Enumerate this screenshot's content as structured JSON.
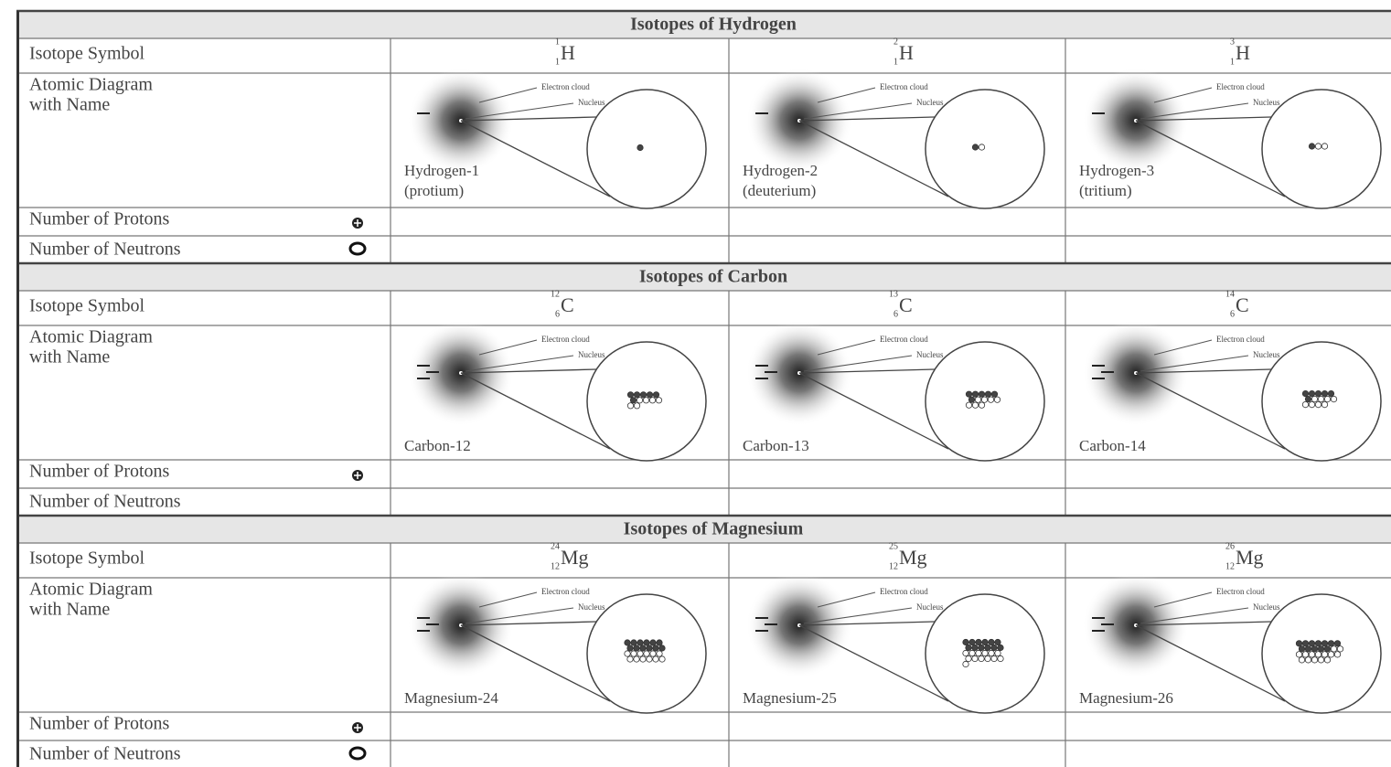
{
  "diagram_labels": {
    "electron_cloud": "Electron cloud",
    "nucleus": "Nucleus"
  },
  "sections": [
    {
      "title": "Isotopes of Hydrogen",
      "row_labels": {
        "symbol": "Isotope Symbol",
        "diagram": [
          "Atomic Diagram",
          "with Name"
        ],
        "protons": "Number of Protons",
        "neutrons": "Number of Neutrons"
      },
      "isotopes": [
        {
          "mass_number": 1,
          "atomic_number": 1,
          "symbol": "H",
          "name": [
            "Hydrogen-1",
            "(protium)"
          ]
        },
        {
          "mass_number": 2,
          "atomic_number": 1,
          "symbol": "H",
          "name": [
            "Hydrogen-2",
            "(deuterium)"
          ]
        },
        {
          "mass_number": 3,
          "atomic_number": 1,
          "symbol": "H",
          "name": [
            "Hydrogen-3",
            "(tritium)"
          ]
        }
      ]
    },
    {
      "title": "Isotopes of Carbon",
      "row_labels": {
        "symbol": "Isotope Symbol",
        "diagram": [
          "Atomic Diagram",
          "with Name"
        ],
        "protons": "Number of Protons",
        "neutrons": "Number of Neutrons"
      },
      "isotopes": [
        {
          "mass_number": 12,
          "atomic_number": 6,
          "symbol": "C",
          "name": [
            "Carbon-12"
          ]
        },
        {
          "mass_number": 13,
          "atomic_number": 6,
          "symbol": "C",
          "name": [
            "Carbon-13"
          ]
        },
        {
          "mass_number": 14,
          "atomic_number": 6,
          "symbol": "C",
          "name": [
            "Carbon-14"
          ]
        }
      ]
    },
    {
      "title": "Isotopes of Magnesium",
      "row_labels": {
        "symbol": "Isotope Symbol",
        "diagram": [
          "Atomic Diagram",
          "with Name"
        ],
        "protons": "Number of Protons",
        "neutrons": "Number of Neutrons"
      },
      "isotopes": [
        {
          "mass_number": 24,
          "atomic_number": 12,
          "symbol": "Mg",
          "name": [
            "Magnesium-24"
          ]
        },
        {
          "mass_number": 25,
          "atomic_number": 12,
          "symbol": "Mg",
          "name": [
            "Magnesium-25"
          ]
        },
        {
          "mass_number": 26,
          "atomic_number": 12,
          "symbol": "Mg",
          "name": [
            "Magnesium-26"
          ]
        }
      ]
    }
  ]
}
